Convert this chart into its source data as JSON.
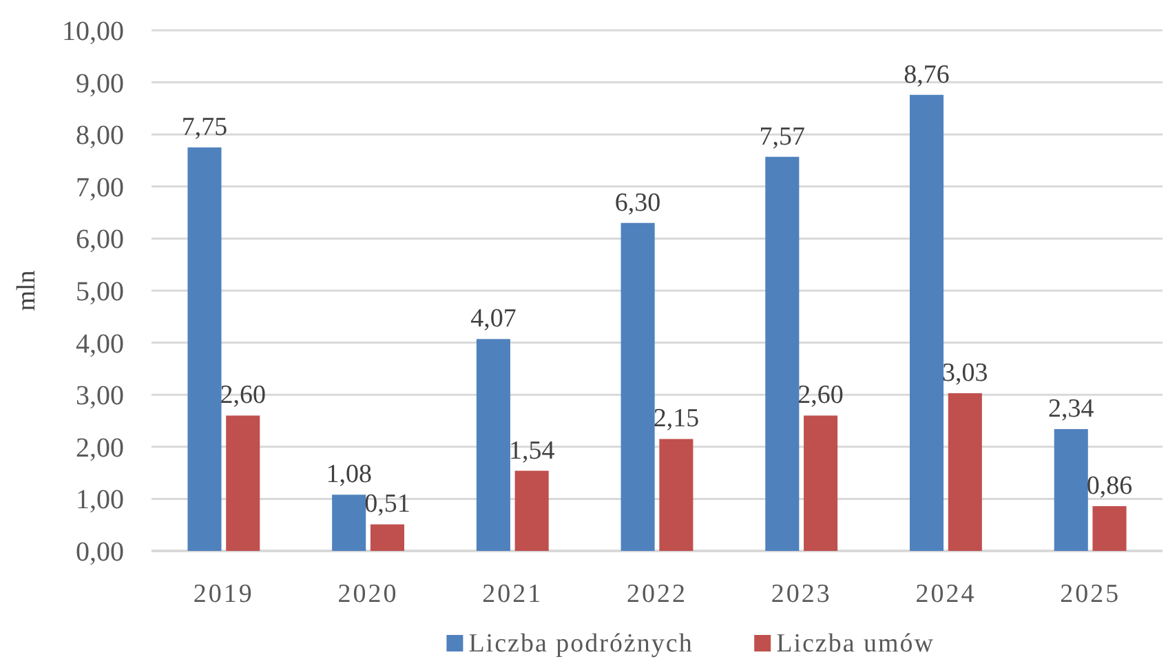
{
  "chart_data": {
    "type": "bar",
    "ylabel": "mln",
    "categories": [
      "2019",
      "2020",
      "2021",
      "2022",
      "2023",
      "2024",
      "2025"
    ],
    "series": [
      {
        "name": "Liczba podróżnych",
        "color": "#4f81bd",
        "values": [
          7.75,
          1.08,
          4.07,
          6.3,
          7.57,
          8.76,
          2.34
        ],
        "value_labels": [
          "7,75",
          "1,08",
          "4,07",
          "6,30",
          "7,57",
          "8,76",
          "2,34"
        ]
      },
      {
        "name": "Liczba umów",
        "color": "#c0504d",
        "values": [
          2.6,
          0.51,
          1.54,
          2.15,
          2.6,
          3.03,
          0.86
        ],
        "value_labels": [
          "2,60",
          "0,51",
          "1,54",
          "2,15",
          "2,60",
          "3,03",
          "0,86"
        ]
      }
    ],
    "ylim": [
      0,
      10
    ],
    "yticks": [
      {
        "value": 0,
        "label": "0,00"
      },
      {
        "value": 1,
        "label": "1,00"
      },
      {
        "value": 2,
        "label": "2,00"
      },
      {
        "value": 3,
        "label": "3,00"
      },
      {
        "value": 4,
        "label": "4,00"
      },
      {
        "value": 5,
        "label": "5,00"
      },
      {
        "value": 6,
        "label": "6,00"
      },
      {
        "value": 7,
        "label": "7,00"
      },
      {
        "value": 8,
        "label": "8,00"
      },
      {
        "value": 9,
        "label": "9,00"
      },
      {
        "value": 10,
        "label": "10,00"
      }
    ],
    "grid": "y",
    "legend": "bottom"
  }
}
